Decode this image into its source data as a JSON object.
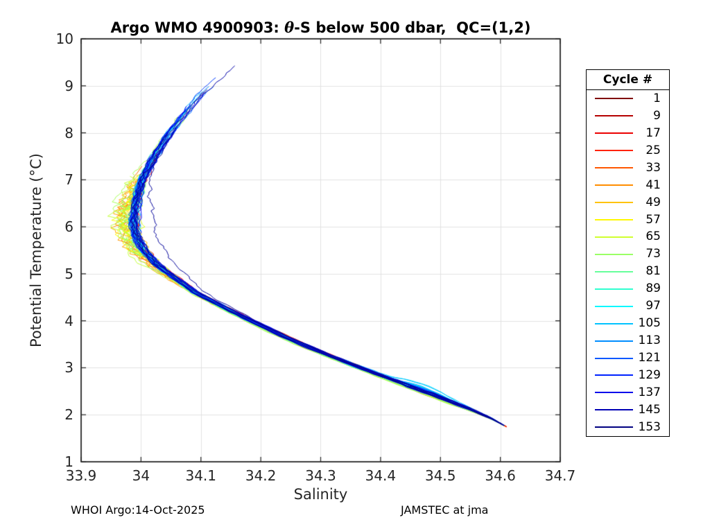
{
  "figure": {
    "title": {
      "prefix": "Argo WMO 4900903: ",
      "theta": "θ",
      "suffix": "-S below 500 dbar,  QC=(1,2)"
    },
    "footer": {
      "left": "WHOI Argo:14-Oct-2025",
      "right": "JAMSTEC at jma"
    }
  },
  "chart_data": {
    "type": "line",
    "title": "Argo WMO 4900903: θ-S below 500 dbar,  QC=(1,2)",
    "xlabel": "Salinity",
    "ylabel": "Potential Temperature (°C)",
    "xlim": [
      33.9,
      34.7
    ],
    "ylim": [
      1,
      10
    ],
    "xtick_values": [
      33.9,
      34.0,
      34.1,
      34.2,
      34.3,
      34.4,
      34.5,
      34.6,
      34.7
    ],
    "xtick_labels": [
      "33.9",
      "34",
      "34.1",
      "34.2",
      "34.3",
      "34.4",
      "34.5",
      "34.6",
      "34.7"
    ],
    "ytick_values": [
      1,
      2,
      3,
      4,
      5,
      6,
      7,
      8,
      9,
      10
    ],
    "ytick_labels": [
      "1",
      "2",
      "3",
      "4",
      "5",
      "6",
      "7",
      "8",
      "9",
      "10"
    ],
    "grid": true,
    "grid_color": "#E2E2E2",
    "axis_color": "#000000",
    "tick_text_color": "#262626",
    "colormap": "jet-reversed",
    "cycles": {
      "first": 1,
      "last": 153,
      "legend_step": 8
    },
    "legend": {
      "title": "Cycle #",
      "position": "right-outside",
      "entries": [
        {
          "cycle": "1",
          "color": "#800000"
        },
        {
          "cycle": "9",
          "color": "#B50000"
        },
        {
          "cycle": "17",
          "color": "#EB0000"
        },
        {
          "cycle": "25",
          "color": "#FF2200"
        },
        {
          "cycle": "33",
          "color": "#FF5700"
        },
        {
          "cycle": "41",
          "color": "#FF8D00"
        },
        {
          "cycle": "49",
          "color": "#FFC300"
        },
        {
          "cycle": "57",
          "color": "#FFF800"
        },
        {
          "cycle": "65",
          "color": "#D0FF2F"
        },
        {
          "cycle": "73",
          "color": "#9AFF65"
        },
        {
          "cycle": "81",
          "color": "#65FF9A"
        },
        {
          "cycle": "89",
          "color": "#2FFFD0"
        },
        {
          "cycle": "97",
          "color": "#00F8FF"
        },
        {
          "cycle": "105",
          "color": "#00C3FF"
        },
        {
          "cycle": "113",
          "color": "#008DFF"
        },
        {
          "cycle": "121",
          "color": "#0057FF"
        },
        {
          "cycle": "129",
          "color": "#0022FF"
        },
        {
          "cycle": "137",
          "color": "#0000EB"
        },
        {
          "cycle": "145",
          "color": "#0000B5"
        },
        {
          "cycle": "153",
          "color": "#000080"
        }
      ]
    },
    "mean_profile": {
      "theta": [
        9.4,
        8.8,
        8.0,
        7.4,
        7.0,
        6.6,
        6.1,
        5.8,
        5.5,
        5.2,
        5.0,
        4.6,
        4.2,
        3.9,
        3.55,
        3.25,
        2.95,
        2.65,
        2.35,
        2.1,
        1.92,
        1.78
      ],
      "salinity": [
        34.152,
        34.098,
        34.048,
        34.018,
        34.002,
        33.993,
        33.988,
        33.992,
        34.005,
        34.026,
        34.047,
        34.091,
        34.151,
        34.199,
        34.258,
        34.315,
        34.375,
        34.437,
        34.5,
        34.552,
        34.585,
        34.605
      ]
    },
    "salinity_minimum": {
      "salinity": 33.96,
      "theta_range": [
        5.5,
        6.8
      ]
    },
    "max_theta_point": {
      "salinity": 34.15,
      "theta": 9.4
    },
    "convergence_point": {
      "salinity": 34.6,
      "theta": 1.78
    }
  }
}
